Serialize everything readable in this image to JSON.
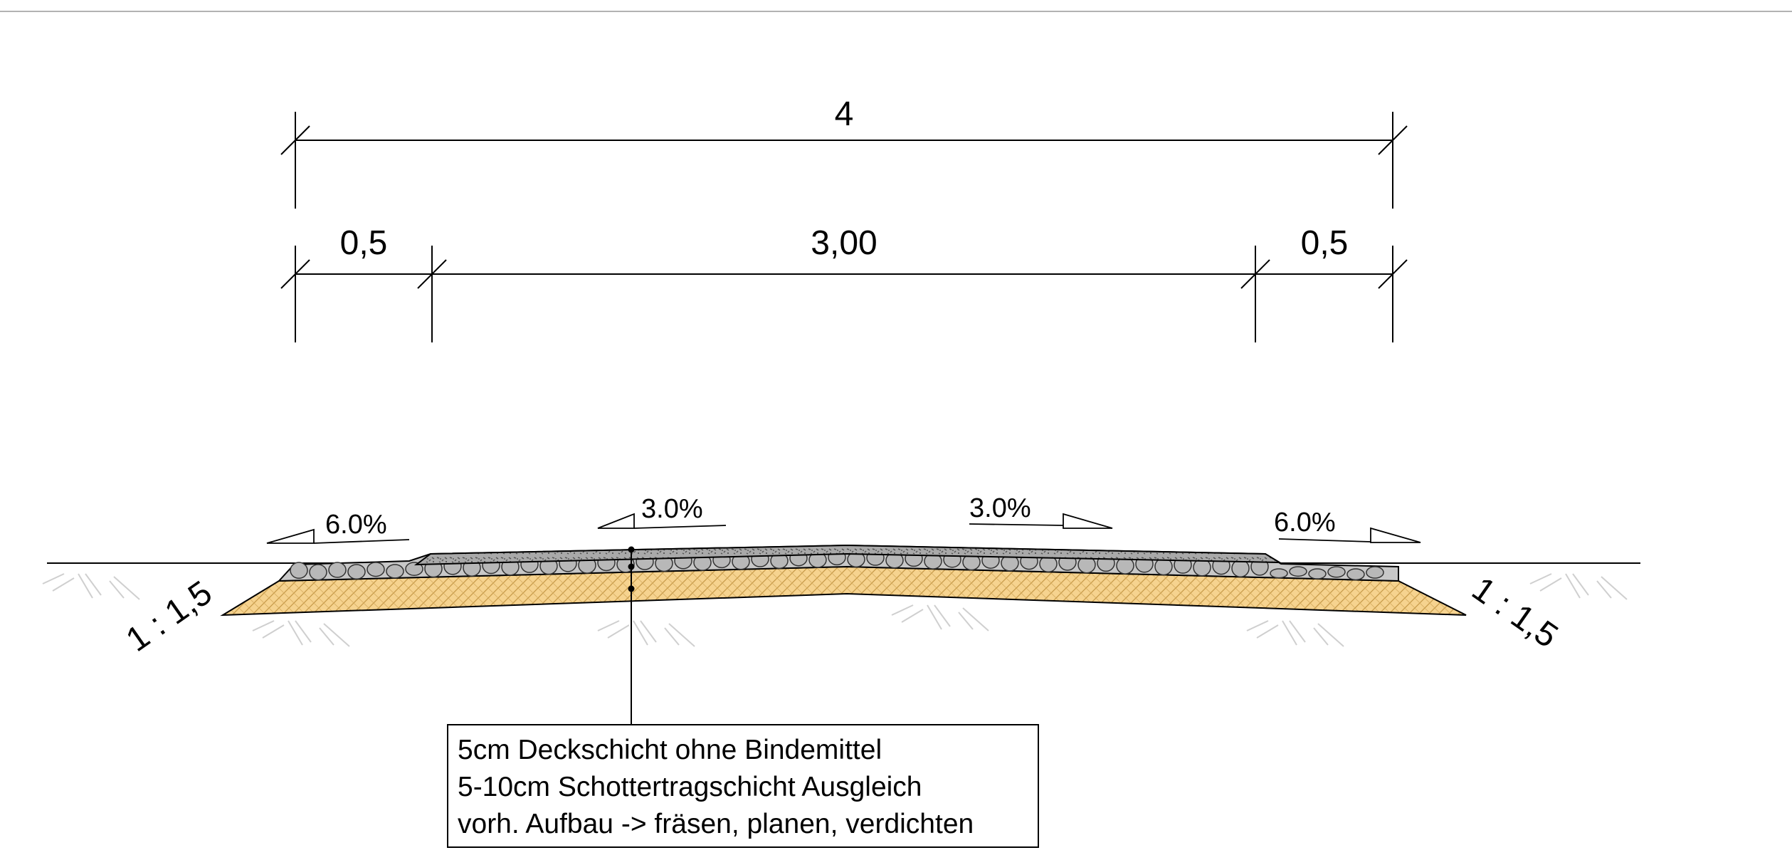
{
  "dimensions": {
    "total_width": "4",
    "left_shoulder": "0,5",
    "carriageway": "3,00",
    "right_shoulder": "0,5"
  },
  "slopes": {
    "left_shoulder": "6.0%",
    "left_carriageway": "3.0%",
    "right_carriageway": "3.0%",
    "right_shoulder": "6.0%"
  },
  "embankment": {
    "left_ratio": "1 : 1,5",
    "right_ratio": "1 : 1,5"
  },
  "layer_callout": {
    "line1": "5cm Deckschicht ohne Bindemittel",
    "line2": "5-10cm Schottertragschicht Ausgleich",
    "line3": "vorh. Aufbau -> fräsen, planen, verdichten"
  },
  "colors": {
    "sand_layer": "#F6D38F",
    "gravel_layer": "#C8C8C8",
    "top_layer": "#A9A9A9",
    "line": "#000000",
    "soil_hatch": "#C8C8C8"
  }
}
